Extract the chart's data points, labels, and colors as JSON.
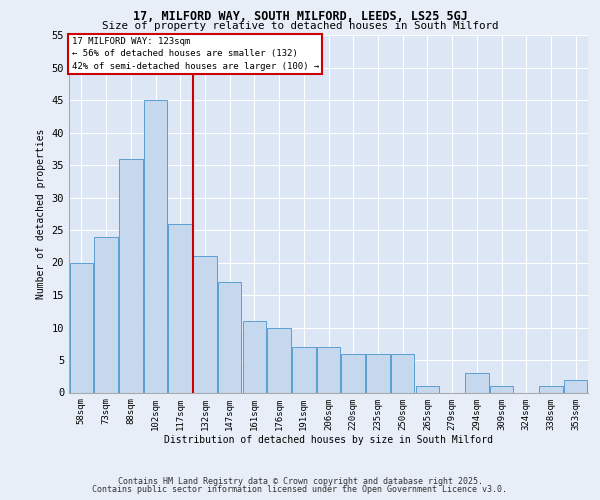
{
  "title1": "17, MILFORD WAY, SOUTH MILFORD, LEEDS, LS25 5GJ",
  "title2": "Size of property relative to detached houses in South Milford",
  "xlabel": "Distribution of detached houses by size in South Milford",
  "ylabel": "Number of detached properties",
  "categories": [
    "58sqm",
    "73sqm",
    "88sqm",
    "102sqm",
    "117sqm",
    "132sqm",
    "147sqm",
    "161sqm",
    "176sqm",
    "191sqm",
    "206sqm",
    "220sqm",
    "235sqm",
    "250sqm",
    "265sqm",
    "279sqm",
    "294sqm",
    "309sqm",
    "324sqm",
    "338sqm",
    "353sqm"
  ],
  "values": [
    20,
    24,
    36,
    45,
    26,
    21,
    17,
    11,
    10,
    7,
    7,
    6,
    6,
    6,
    1,
    0,
    3,
    1,
    0,
    1,
    2
  ],
  "bar_color": "#c5d8ed",
  "bar_edge_color": "#5a9fd4",
  "bg_color": "#dce6f5",
  "grid_color": "#ffffff",
  "vline_x": 4.5,
  "vline_color": "#cc0000",
  "annotation_title": "17 MILFORD WAY: 123sqm",
  "annotation_line1": "← 56% of detached houses are smaller (132)",
  "annotation_line2": "42% of semi-detached houses are larger (100) →",
  "annotation_box_color": "#cc0000",
  "ylim": [
    0,
    55
  ],
  "yticks": [
    0,
    5,
    10,
    15,
    20,
    25,
    30,
    35,
    40,
    45,
    50,
    55
  ],
  "footer1": "Contains HM Land Registry data © Crown copyright and database right 2025.",
  "footer2": "Contains public sector information licensed under the Open Government Licence v3.0.",
  "fig_bg": "#e8eef8"
}
